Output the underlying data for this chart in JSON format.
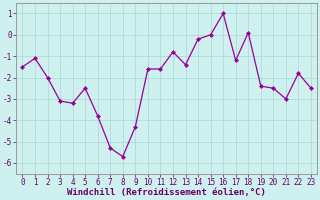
{
  "x": [
    0,
    1,
    2,
    3,
    4,
    5,
    6,
    7,
    8,
    9,
    10,
    11,
    12,
    13,
    14,
    15,
    16,
    17,
    18,
    19,
    20,
    21,
    22,
    23
  ],
  "y": [
    -1.5,
    -1.1,
    -2.0,
    -3.1,
    -3.2,
    -2.5,
    -3.8,
    -5.3,
    -5.7,
    -4.3,
    -1.6,
    -1.6,
    -0.8,
    -1.4,
    -0.2,
    0.0,
    1.0,
    -1.2,
    0.1,
    -2.4,
    -2.5,
    -3.0,
    -1.8,
    -2.5
  ],
  "line_color": "#990099",
  "marker": "D",
  "marker_size": 2,
  "background_color": "#cef0ee",
  "grid_color": "#b0dbd8",
  "xlabel": "Windchill (Refroidissement éolien,°C)",
  "xlabel_fontsize": 6.5,
  "tick_fontsize": 5.5,
  "ylim": [
    -6.5,
    1.5
  ],
  "yticks": [
    -6,
    -5,
    -4,
    -3,
    -2,
    -1,
    0,
    1
  ],
  "xlim": [
    -0.5,
    23.5
  ],
  "text_color": "#660066",
  "spine_color": "#999999"
}
